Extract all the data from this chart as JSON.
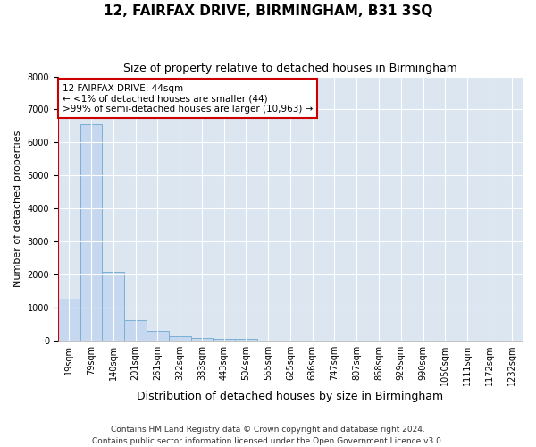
{
  "title": "12, FAIRFAX DRIVE, BIRMINGHAM, B31 3SQ",
  "subtitle": "Size of property relative to detached houses in Birmingham",
  "xlabel": "Distribution of detached houses by size in Birmingham",
  "ylabel": "Number of detached properties",
  "footer_line1": "Contains HM Land Registry data © Crown copyright and database right 2024.",
  "footer_line2": "Contains public sector information licensed under the Open Government Licence v3.0.",
  "bar_labels": [
    "19sqm",
    "79sqm",
    "140sqm",
    "201sqm",
    "261sqm",
    "322sqm",
    "383sqm",
    "443sqm",
    "504sqm",
    "565sqm",
    "625sqm",
    "686sqm",
    "747sqm",
    "807sqm",
    "868sqm",
    "929sqm",
    "990sqm",
    "1050sqm",
    "1111sqm",
    "1172sqm",
    "1232sqm"
  ],
  "bar_values": [
    1280,
    6540,
    2080,
    620,
    300,
    140,
    90,
    60,
    60,
    0,
    0,
    0,
    0,
    0,
    0,
    0,
    0,
    0,
    0,
    0,
    0
  ],
  "bar_color": "#c5d8ef",
  "bar_edgecolor": "#7aafd4",
  "ylim": [
    0,
    8000
  ],
  "yticks": [
    0,
    1000,
    2000,
    3000,
    4000,
    5000,
    6000,
    7000,
    8000
  ],
  "annotation_text": "12 FAIRFAX DRIVE: 44sqm\n← <1% of detached houses are smaller (44)\n>99% of semi-detached houses are larger (10,963) →",
  "annotation_box_color": "#ffffff",
  "annotation_box_edgecolor": "#cc0000",
  "vline_color": "#cc0000",
  "fig_bg_color": "#ffffff",
  "plot_bg_color": "#dce6f1",
  "grid_color": "#ffffff",
  "title_fontsize": 11,
  "subtitle_fontsize": 9,
  "xlabel_fontsize": 9,
  "ylabel_fontsize": 8,
  "tick_fontsize": 7,
  "annotation_fontsize": 7.5,
  "footer_fontsize": 6.5
}
